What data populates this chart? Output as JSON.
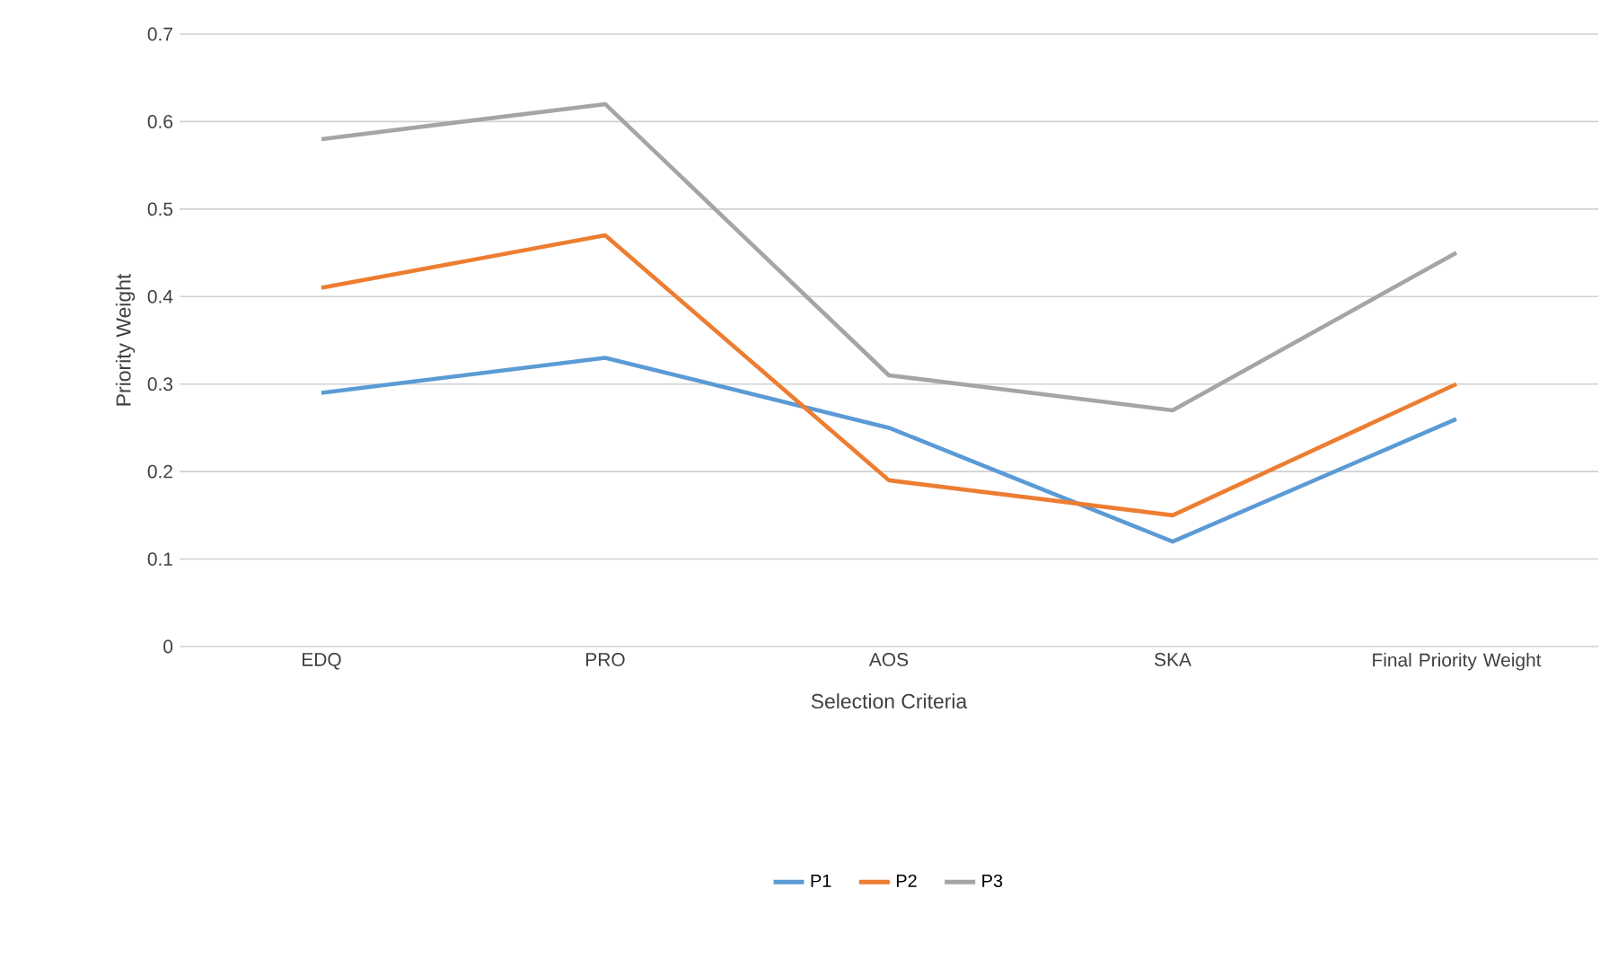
{
  "chart_data": {
    "type": "line",
    "xlabel": "Selection Criteria",
    "ylabel": "Priority Weight",
    "categories": [
      "EDQ",
      "PRO",
      "AOS",
      "SKA",
      "Final Priority Weight"
    ],
    "series": [
      {
        "name": "P1",
        "color": "#5b9bd5",
        "values": [
          0.29,
          0.33,
          0.25,
          0.12,
          0.26
        ]
      },
      {
        "name": "P2",
        "color": "#ed7d31",
        "values": [
          0.41,
          0.47,
          0.19,
          0.15,
          0.3
        ]
      },
      {
        "name": "P3",
        "color": "#a5a5a5",
        "values": [
          0.58,
          0.62,
          0.31,
          0.27,
          0.45
        ]
      }
    ],
    "ylim": [
      0,
      0.7
    ],
    "yticks": [
      0,
      0.1,
      0.2,
      0.3,
      0.4,
      0.5,
      0.6,
      0.7
    ],
    "grid": "y",
    "legend": "bottom"
  }
}
